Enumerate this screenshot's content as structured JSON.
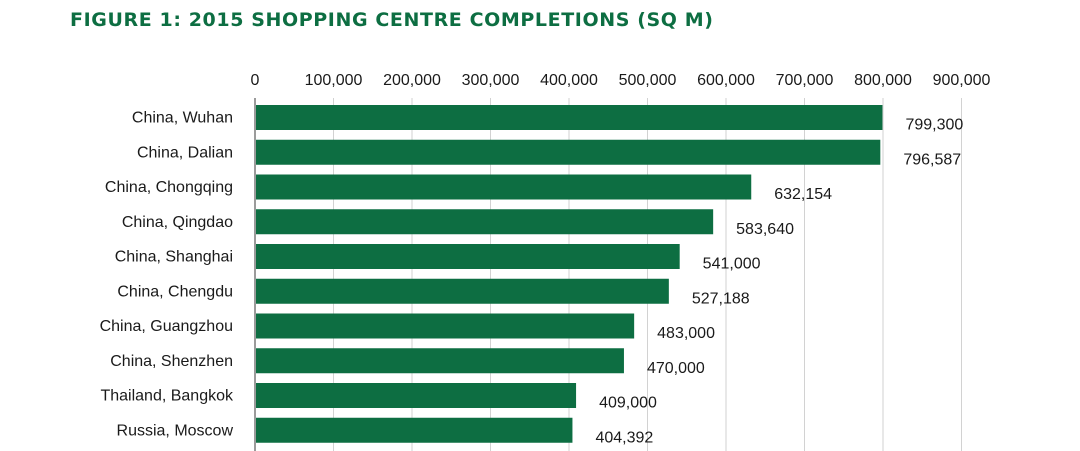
{
  "chart_data": {
    "type": "bar",
    "orientation": "horizontal",
    "title": "FIGURE 1: 2015 SHOPPING CENTRE COMPLETIONS (SQ M)",
    "categories": [
      "China, Wuhan",
      "China, Dalian",
      "China, Chongqing",
      "China, Qingdao",
      "China, Shanghai",
      "China, Chengdu",
      "China, Guangzhou",
      "China, Shenzhen",
      "Thailand, Bangkok",
      "Russia, Moscow"
    ],
    "values": [
      799300,
      796587,
      632154,
      583640,
      541000,
      527188,
      483000,
      470000,
      409000,
      404392
    ],
    "value_labels": [
      "799,300",
      "796,587",
      "632,154",
      "583,640",
      "541,000",
      "527,188",
      "483,000",
      "470,000",
      "409,000",
      "404,392"
    ],
    "xlim": [
      0,
      900000
    ],
    "xticks": [
      0,
      100000,
      200000,
      300000,
      400000,
      500000,
      600000,
      700000,
      800000,
      900000
    ],
    "xtick_labels": [
      "0",
      "100,000",
      "200,000",
      "300,000",
      "400,000",
      "500,000",
      "600,000",
      "700,000",
      "800,000",
      "900,000"
    ],
    "x_axis_position": "top",
    "xlabel": "",
    "ylabel": "",
    "grid": true,
    "bar_color": "#0d6e42",
    "title_color": "#0d6e42"
  }
}
